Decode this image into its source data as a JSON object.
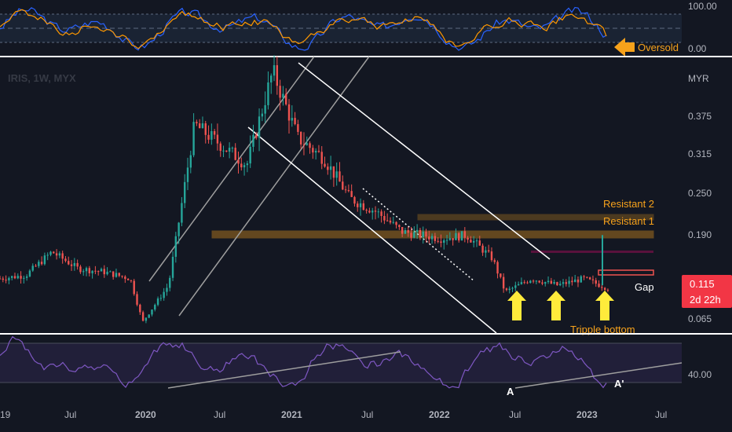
{
  "chart_data": {
    "type": "candlestick",
    "symbol_title": "IRIS, 1W, MYX",
    "currency_label": "MYR",
    "price_ticks": [
      "0.375",
      "0.315",
      "0.250",
      "0.190",
      "0.065"
    ],
    "top_osc_ticks": [
      "100.00",
      "0.00"
    ],
    "bottom_rsi_tick": "40.00",
    "x_ticks": [
      "19",
      "Jul",
      "2020",
      "Jul",
      "2021",
      "Jul",
      "2022",
      "Jul",
      "2023",
      "Jul"
    ],
    "last_price": "0.115",
    "countdown": "2d 22h",
    "candles_sampled": [
      {
        "date": "2019-04",
        "close": 0.13
      },
      {
        "date": "2019-06",
        "close": 0.135
      },
      {
        "date": "2019-08",
        "close": 0.17
      },
      {
        "date": "2019-10",
        "close": 0.145
      },
      {
        "date": "2019-12",
        "close": 0.14
      },
      {
        "date": "2020-02",
        "close": 0.13
      },
      {
        "date": "2020-03",
        "close": 0.065
      },
      {
        "date": "2020-05",
        "close": 0.12
      },
      {
        "date": "2020-07",
        "close": 0.36
      },
      {
        "date": "2020-09",
        "close": 0.33
      },
      {
        "date": "2020-11",
        "close": 0.3
      },
      {
        "date": "2021-01",
        "close": 0.44
      },
      {
        "date": "2021-03",
        "close": 0.34
      },
      {
        "date": "2021-05",
        "close": 0.31
      },
      {
        "date": "2021-07",
        "close": 0.25
      },
      {
        "date": "2021-09",
        "close": 0.23
      },
      {
        "date": "2021-11",
        "close": 0.2
      },
      {
        "date": "2022-02",
        "close": 0.19
      },
      {
        "date": "2022-04",
        "close": 0.195
      },
      {
        "date": "2022-06",
        "close": 0.16
      },
      {
        "date": "2022-07",
        "close": 0.11
      },
      {
        "date": "2022-09",
        "close": 0.13
      },
      {
        "date": "2022-11",
        "close": 0.12
      },
      {
        "date": "2023-01",
        "close": 0.13
      },
      {
        "date": "2023-03",
        "close": 0.115
      }
    ],
    "levels": [
      {
        "name": "Resistant 2",
        "value": 0.215
      },
      {
        "name": "Resistant 1",
        "value": 0.19
      }
    ]
  },
  "annotations": {
    "oversold": "Oversold",
    "resistant2": "Resistant 2",
    "resistant1": "Resistant 1",
    "gap": "Gap",
    "triple_bottom": "Tripple bottom",
    "point_a": "A",
    "point_a_prime": "A'"
  },
  "colors": {
    "background": "#131722",
    "up": "#26a69a",
    "down": "#ef5350",
    "annotation": "#f7a21b",
    "arrow": "#ffeb3b",
    "rsi_line": "#7e57c2",
    "osc_fast": "#2962ff",
    "osc_slow": "#ff9800",
    "price_label_bg": "#f23645"
  }
}
